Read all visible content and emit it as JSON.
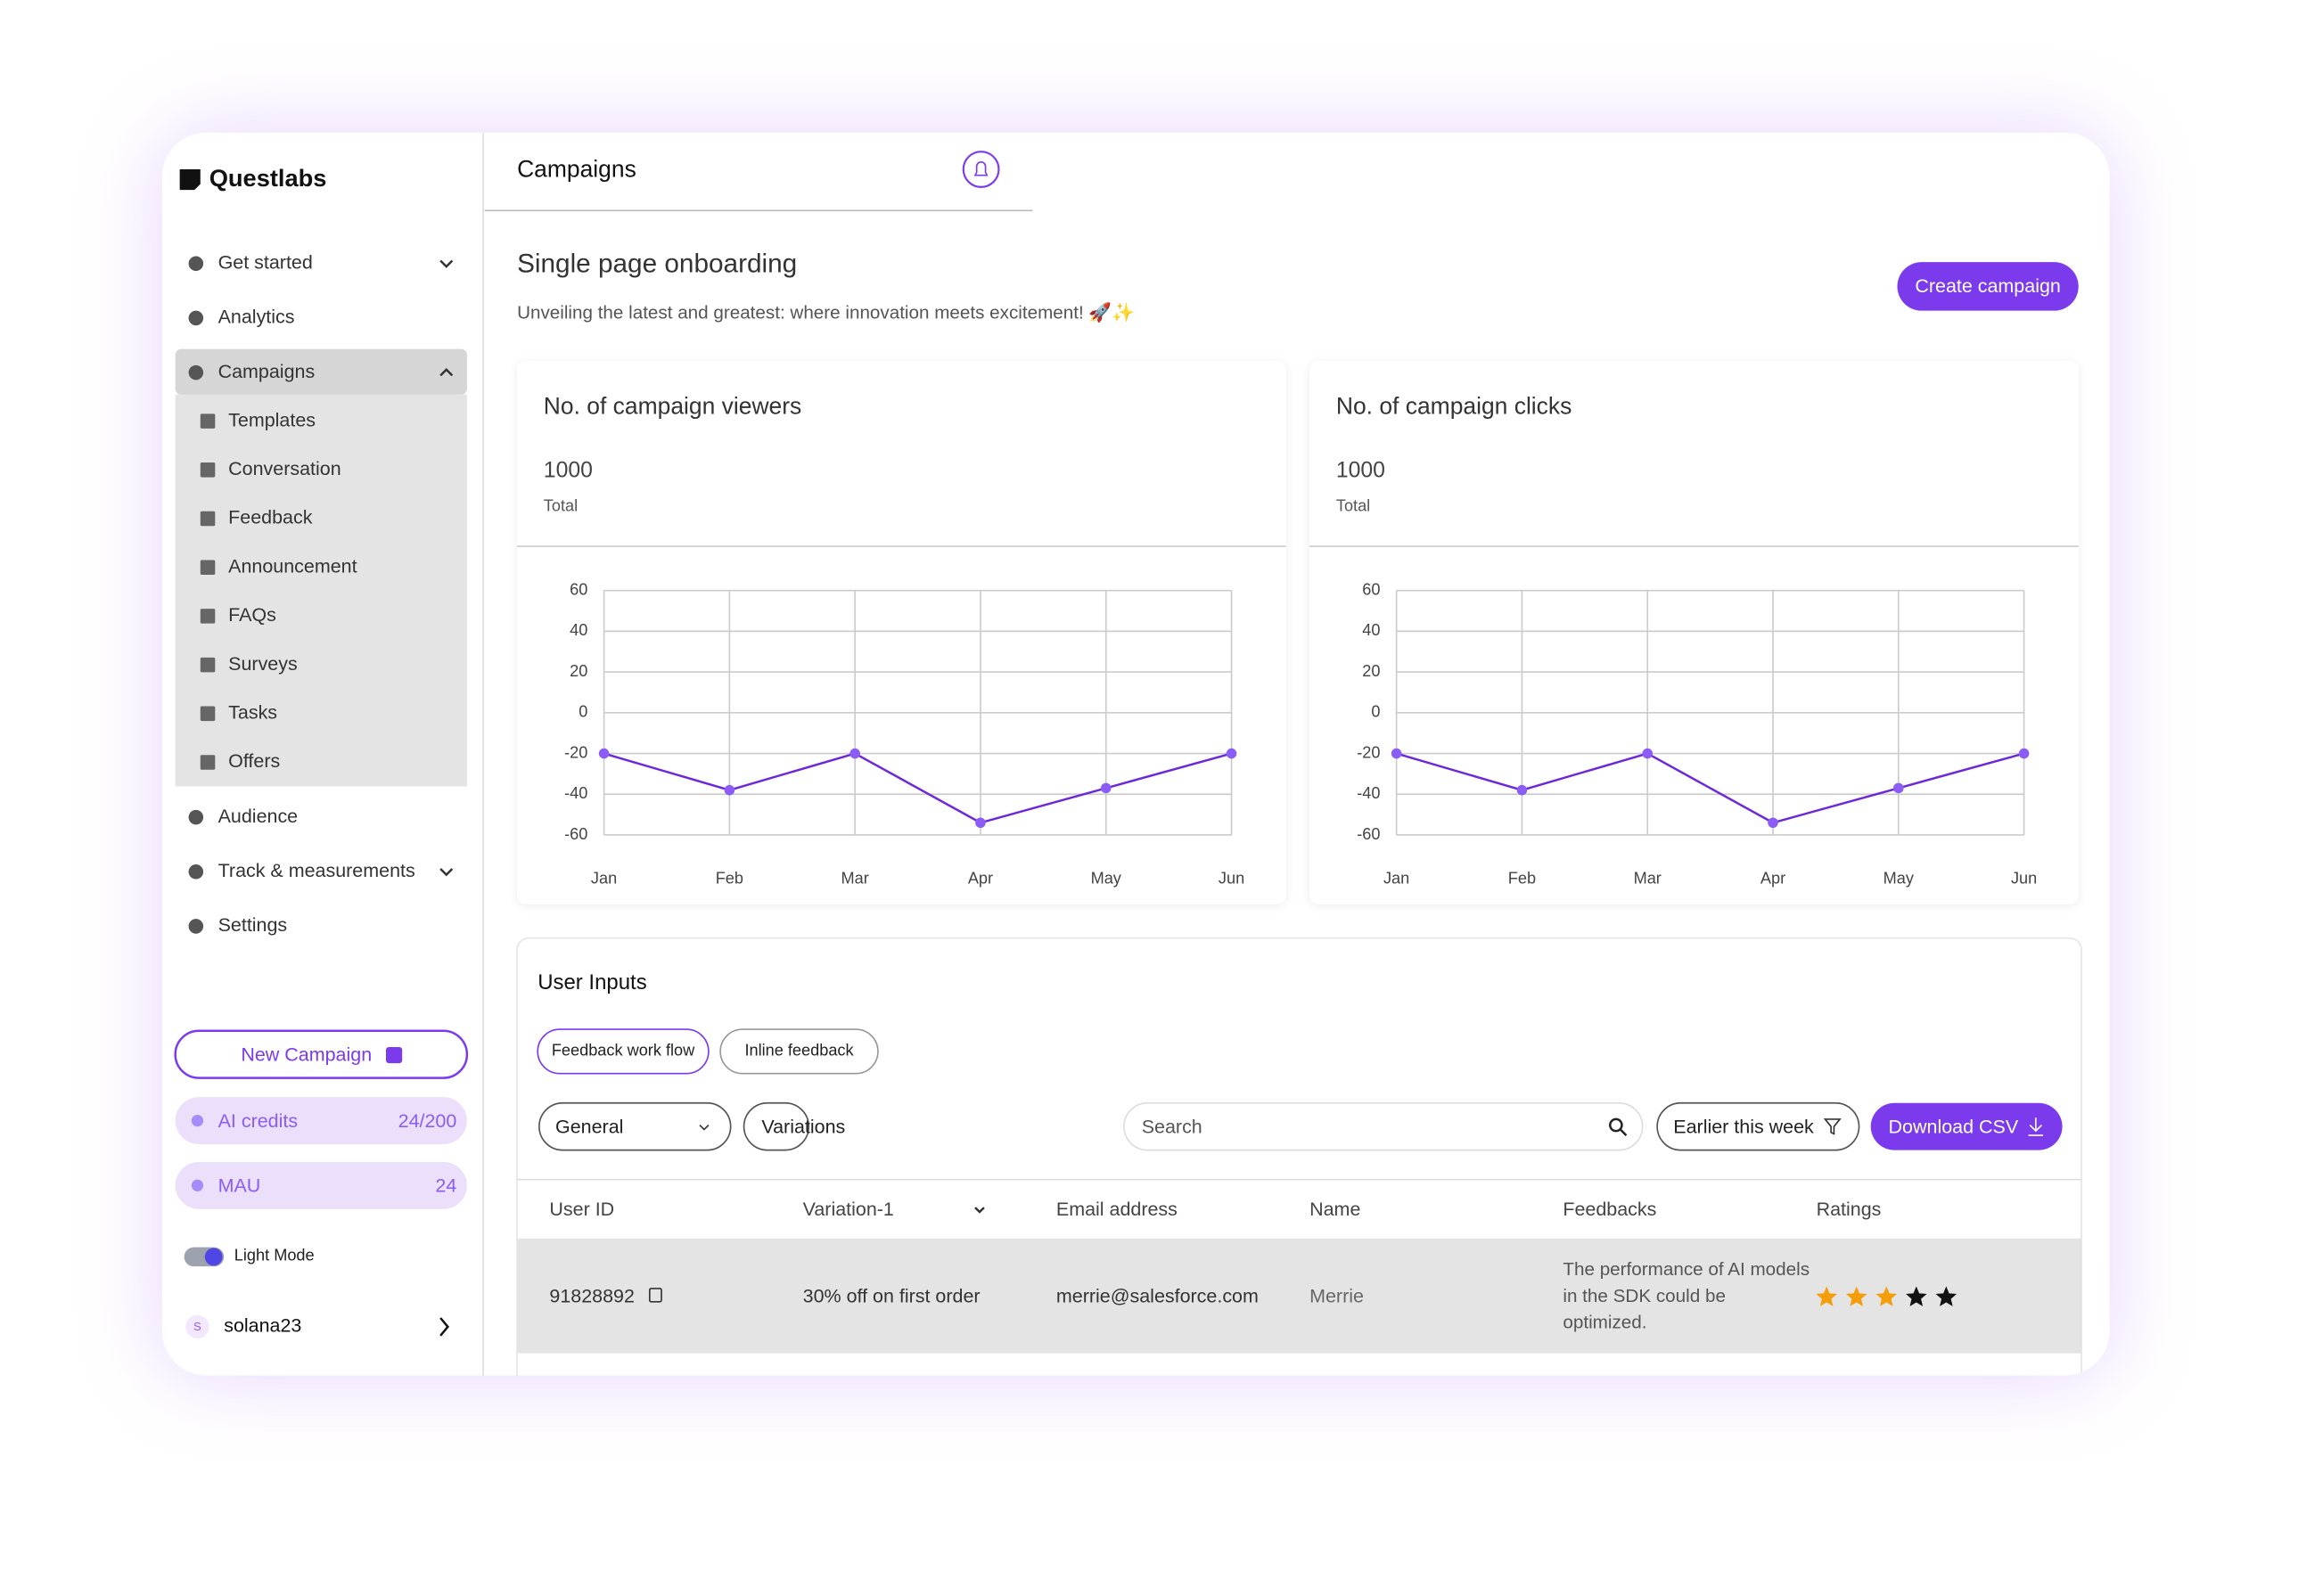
{
  "brand": "Questlabs",
  "sidebar": {
    "nav": [
      "Get started",
      "Analytics",
      "Campaigns"
    ],
    "campaign_items": [
      "Templates",
      "Conversation",
      "Feedback",
      "Announcement",
      "FAQs",
      "Surveys",
      "Tasks",
      "Offers"
    ],
    "nav_after": [
      "Audience",
      "Track & measurements",
      "Settings"
    ],
    "new_campaign": "New Campaign",
    "ai_credits": {
      "label": "AI credits",
      "value": "24/200"
    },
    "mau": {
      "label": "MAU",
      "value": "24"
    },
    "theme": "Light Mode",
    "user": {
      "initial": "S",
      "name": "solana23"
    }
  },
  "header": {
    "title": "Campaigns"
  },
  "page": {
    "title": "Single page onboarding",
    "subtitle": "Unveiling the latest and greatest: where innovation meets excitement! 🚀✨",
    "create_button": "Create campaign"
  },
  "chart_data": [
    {
      "type": "line",
      "title": "No. of campaign viewers",
      "total": 1000,
      "total_label": "Total",
      "categories": [
        "Jan",
        "Feb",
        "Mar",
        "Apr",
        "May",
        "Jun"
      ],
      "values": [
        -20,
        -38,
        -20,
        -54,
        -37,
        -20
      ],
      "color": "#6d28d9",
      "ylim": [
        -60,
        60
      ],
      "yticks": [
        -60,
        -40,
        -20,
        0,
        20,
        40,
        60
      ],
      "grid": true
    },
    {
      "type": "line",
      "title": "No. of campaign clicks",
      "total": 1000,
      "total_label": "Total",
      "categories": [
        "Jan",
        "Feb",
        "Mar",
        "Apr",
        "May",
        "Jun"
      ],
      "values": [
        -20,
        -38,
        -20,
        -54,
        -37,
        -20
      ],
      "color": "#6d28d9",
      "ylim": [
        -60,
        60
      ],
      "yticks": [
        -60,
        -40,
        -20,
        0,
        20,
        40,
        60
      ],
      "grid": true
    }
  ],
  "user_inputs": {
    "title": "User Inputs",
    "tabs": [
      "Feedback work flow",
      "Inline feedback"
    ],
    "filter": "General",
    "variations": "Variations",
    "search_placeholder": "Search",
    "date_filter": "Earlier this week",
    "download": "Download CSV",
    "table": {
      "columns": [
        "User ID",
        "Variation-1",
        "Email address",
        "Name",
        "Feedbacks",
        "Ratings"
      ],
      "rows": [
        [
          "91828892",
          "30% off on first order",
          "merrie@salesforce.com",
          "Merrie",
          "The performance of AI models in the SDK could be optimized.",
          3
        ]
      ],
      "rating_scale": 5
    }
  }
}
